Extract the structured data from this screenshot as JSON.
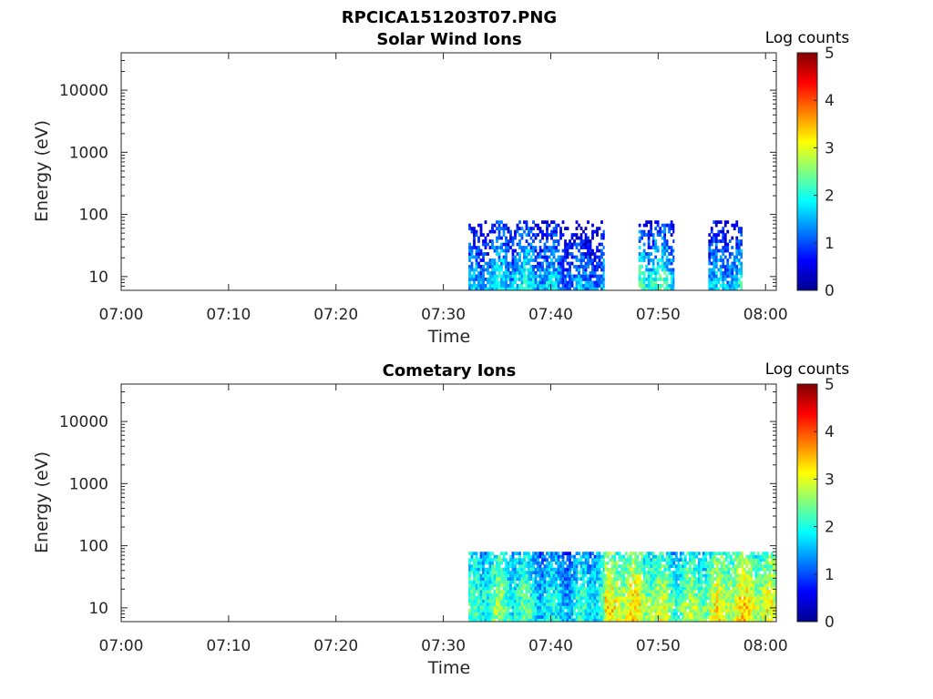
{
  "figure_title": "RPCICA151203T07.PNG",
  "colormap": [
    "#00008f",
    "#0000ff",
    "#0080ff",
    "#00ffff",
    "#80ff80",
    "#ffff00",
    "#ff8000",
    "#ff0000",
    "#800000"
  ],
  "chart_data": [
    {
      "type": "heatmap",
      "title": "Solar Wind Ions",
      "xlabel": "Time",
      "ylabel": "Energy (eV)",
      "x_ticks": [
        "07:00",
        "07:10",
        "07:20",
        "07:30",
        "07:40",
        "07:50",
        "08:00"
      ],
      "x_tick_minutes": [
        0,
        10,
        20,
        30,
        40,
        50,
        60
      ],
      "xlim_minutes": [
        0,
        61
      ],
      "y_scale": "log",
      "y_ticks": [
        "10",
        "100",
        "1000",
        "10000"
      ],
      "y_tick_values": [
        10,
        100,
        1000,
        10000
      ],
      "ylim": [
        6,
        40000
      ],
      "data_energy_max_eV": 80,
      "colorbar": {
        "label": "Log counts",
        "ticks": [
          "0",
          "1",
          "2",
          "3",
          "4",
          "5"
        ],
        "range": [
          0,
          5
        ]
      },
      "intervals": [
        {
          "start": "07:32:20",
          "end": "07:45:00",
          "typical_log_counts": 1.6,
          "peak_log_counts": 2.2
        },
        {
          "start": "07:48:10",
          "end": "07:51:30",
          "typical_log_counts": 2.0,
          "peak_log_counts": 2.5
        },
        {
          "start": "07:54:40",
          "end": "07:57:50",
          "typical_log_counts": 1.8,
          "peak_log_counts": 2.4
        }
      ]
    },
    {
      "type": "heatmap",
      "title": "Cometary Ions",
      "xlabel": "Time",
      "ylabel": "Energy (eV)",
      "x_ticks": [
        "07:00",
        "07:10",
        "07:20",
        "07:30",
        "07:40",
        "07:50",
        "08:00"
      ],
      "x_tick_minutes": [
        0,
        10,
        20,
        30,
        40,
        50,
        60
      ],
      "xlim_minutes": [
        0,
        61
      ],
      "y_scale": "log",
      "y_ticks": [
        "10",
        "100",
        "1000",
        "10000"
      ],
      "y_tick_values": [
        10,
        100,
        1000,
        10000
      ],
      "ylim": [
        6,
        40000
      ],
      "data_energy_max_eV": 80,
      "colorbar": {
        "label": "Log counts",
        "ticks": [
          "0",
          "1",
          "2",
          "3",
          "4",
          "5"
        ],
        "range": [
          0,
          5
        ]
      },
      "intervals": [
        {
          "start": "07:32:20",
          "end": "07:45:00",
          "typical_log_counts": 2.2,
          "peak_log_counts": 3.4
        },
        {
          "start": "07:45:00",
          "end": "08:01:00",
          "typical_log_counts": 3.0,
          "peak_log_counts": 3.8
        }
      ]
    }
  ]
}
